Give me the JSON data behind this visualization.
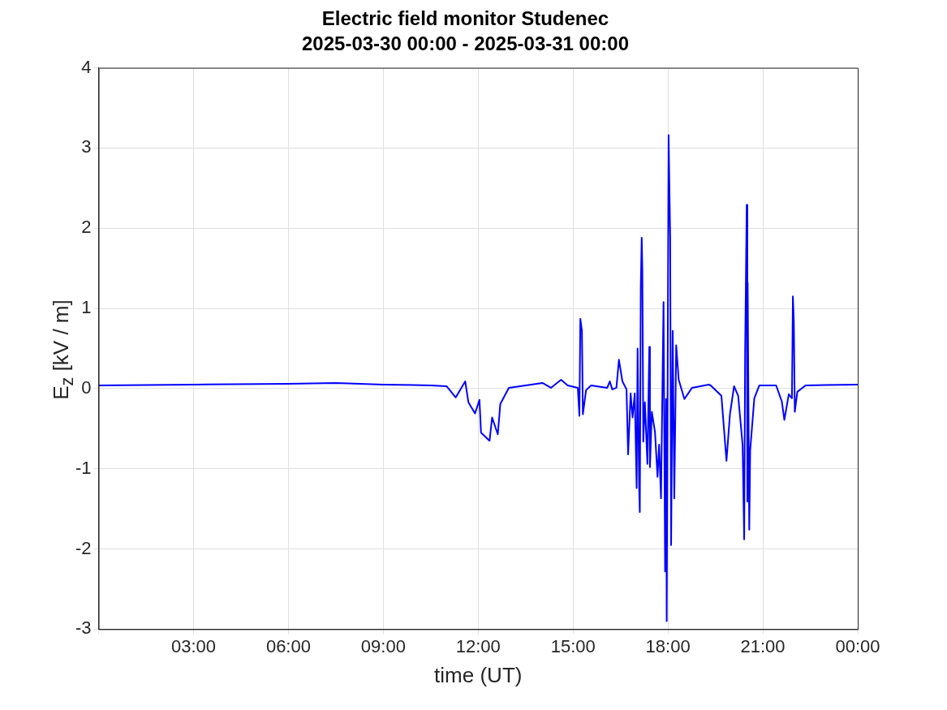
{
  "chart_data": {
    "type": "line",
    "title": "Electric field monitor Studenec",
    "subtitle": "2025-03-30 00:00 - 2025-03-31 00:00",
    "xlabel": "time (UT)",
    "ylabel": "E$_{z}$ [kV / m]",
    "xlim": [
      0,
      24
    ],
    "xticks": [
      {
        "value": 0,
        "label": null
      },
      {
        "value": 3,
        "label": "03:00"
      },
      {
        "value": 6,
        "label": "06:00"
      },
      {
        "value": 9,
        "label": "09:00"
      },
      {
        "value": 12,
        "label": "12:00"
      },
      {
        "value": 15,
        "label": "15:00"
      },
      {
        "value": 18,
        "label": "18:00"
      },
      {
        "value": 21,
        "label": "21:00"
      },
      {
        "value": 24,
        "label": "00:00"
      }
    ],
    "ylim": [
      -3,
      4
    ],
    "yticks": [
      -3,
      -2,
      -1,
      0,
      1,
      2,
      3,
      4
    ],
    "grid": true,
    "legend": false,
    "marker": "none",
    "line_style": "solid",
    "series": [
      {
        "color": "#0000ff",
        "x": [
          0,
          3,
          6,
          7.5,
          9,
          10.5,
          11,
          11.29,
          11.59,
          11.69,
          11.9,
          12.04,
          12.09,
          12.36,
          12.44,
          12.62,
          12.7,
          12.97,
          14.03,
          14.3,
          14.62,
          14.83,
          15.15,
          15.2,
          15.23,
          15.28,
          15.31,
          15.41,
          15.57,
          16.08,
          16.16,
          16.24,
          16.37,
          16.45,
          16.56,
          16.69,
          16.74,
          16.82,
          16.88,
          16.95,
          17.01,
          17.04,
          17.09,
          17.11,
          17.14,
          17.17,
          17.19,
          17.22,
          17.27,
          17.35,
          17.41,
          17.43,
          17.49,
          17.59,
          17.67,
          17.72,
          17.78,
          17.86,
          17.91,
          17.94,
          17.96,
          18.02,
          18.07,
          18.1,
          18.15,
          18.2,
          18.26,
          18.34,
          18.52,
          18.76,
          19.29,
          19.35,
          19.69,
          19.85,
          19.96,
          20.09,
          20.22,
          20.36,
          20.41,
          20.44,
          20.49,
          20.51,
          20.52,
          20.57,
          20.6,
          20.73,
          20.89,
          21.42,
          21.6,
          21.68,
          21.82,
          21.92,
          21.95,
          21.98,
          22.01,
          22.09,
          22.35,
          24
        ],
        "values": [
          0.04,
          0.05,
          0.06,
          0.07,
          0.05,
          0.04,
          0.03,
          -0.11,
          0.09,
          -0.17,
          -0.31,
          -0.14,
          -0.55,
          -0.65,
          -0.36,
          -0.57,
          -0.19,
          0.01,
          0.07,
          0.01,
          0.11,
          0.04,
          0.01,
          -0.34,
          0.87,
          0.72,
          -0.32,
          -0.02,
          0.04,
          0.01,
          0.09,
          -0.01,
          0.01,
          0.36,
          0.09,
          -0.01,
          -0.82,
          -0.06,
          -0.36,
          -0.06,
          -1.24,
          0.5,
          -1.25,
          -1.54,
          1.25,
          1.88,
          1.49,
          -0.66,
          -0.17,
          -0.94,
          0.52,
          -0.98,
          -0.29,
          -0.54,
          -1.1,
          -0.7,
          -1.37,
          1.08,
          -2.28,
          -0.13,
          -2.9,
          3.16,
          1.89,
          -1.95,
          0.72,
          -1.37,
          0.54,
          0.11,
          -0.13,
          0.01,
          0.05,
          0.04,
          -0.09,
          -0.9,
          -0.32,
          0.03,
          -0.09,
          -0.7,
          -1.88,
          0.47,
          2.29,
          -1.41,
          1.32,
          -1.76,
          -0.77,
          -0.12,
          0.04,
          0.04,
          -0.16,
          -0.39,
          -0.07,
          -0.12,
          1.15,
          0.82,
          -0.29,
          -0.04,
          0.04,
          0.05
        ]
      }
    ]
  }
}
